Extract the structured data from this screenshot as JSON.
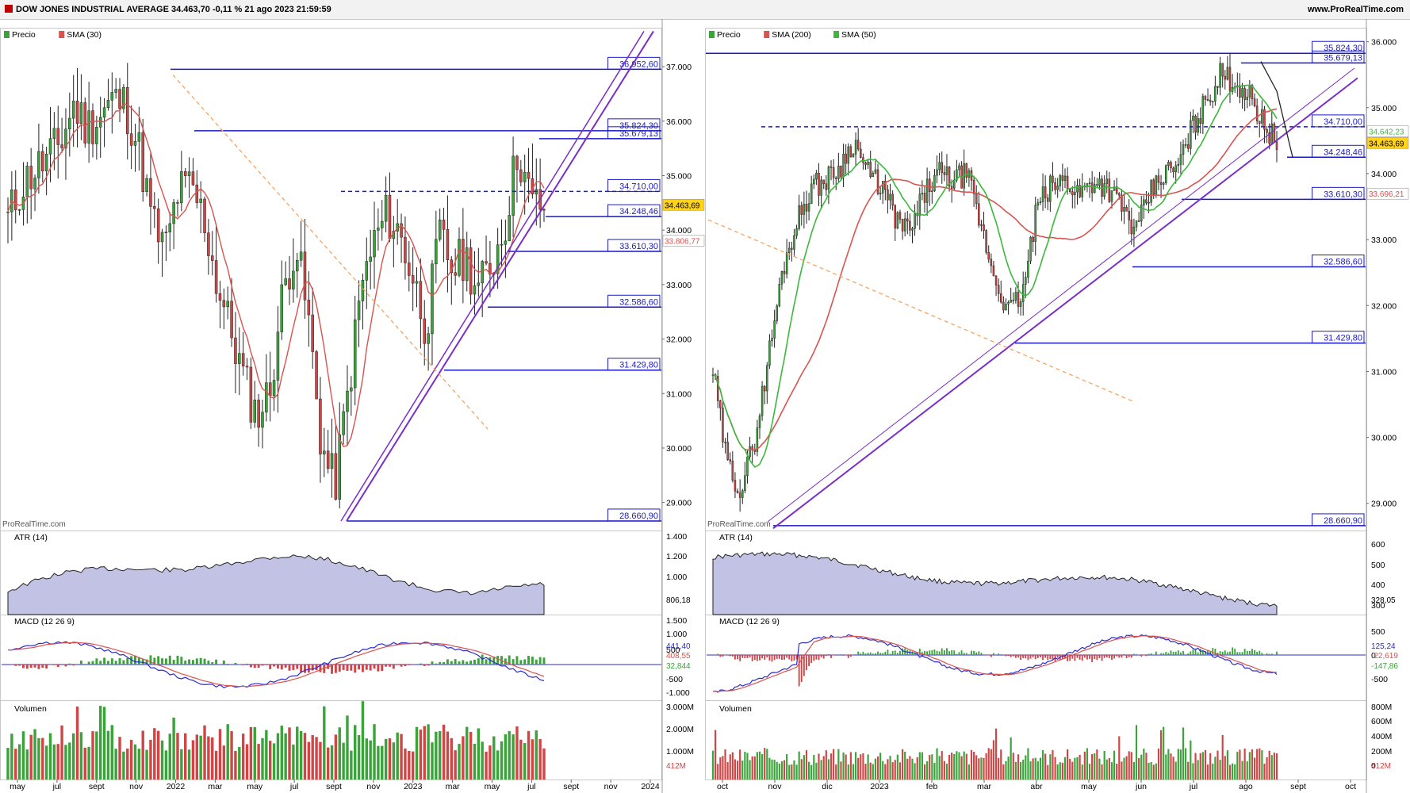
{
  "header": {
    "title": "DOW JONES INDUSTRIAL AVERAGE 34.463,70 -0,11 % 21 ago 2023 21:59:59",
    "site": "www.ProRealTime.com"
  },
  "colors": {
    "candle_up": "#3aa33a",
    "candle_down": "#d04545",
    "level_line": "#1a1ac8",
    "trendline": "#7a2ec8",
    "sma_red": "#d9534f",
    "sma_green": "#3cb83c",
    "fib_dash": "#f4a460",
    "atr_fill": "#9a9ad4"
  },
  "watermark": "ProRealTime.com",
  "left": {
    "price_panel": {
      "legend": [
        "Precio",
        "SMA (30)"
      ],
      "price_axis": [
        "37.000",
        "36.000",
        "35.000",
        "34.000",
        "33.000",
        "32.000",
        "31.000",
        "30.000",
        "29.000"
      ],
      "levels": [
        "36.952,60",
        "35.824,30",
        "35.679,13",
        "34.710,00",
        "34.248,46",
        "33.610,30",
        "32.586,60",
        "31.429,80",
        "28.660,90"
      ],
      "last_price": "34.463,69",
      "sma_value": "33.806,77"
    },
    "atr_panel": {
      "legend": "ATR (14)",
      "axis": [
        "1.400",
        "1.200",
        "1.000"
      ],
      "value": "806,18"
    },
    "macd_panel": {
      "legend": "MACD (12 26 9)",
      "axis": [
        "1.500",
        "1.000",
        "500",
        "-500",
        "-1.000"
      ],
      "values": [
        "441,40",
        "408,55",
        "32,844"
      ]
    },
    "volume_panel": {
      "legend": "Volumen",
      "axis": [
        "3.000M",
        "2.000M",
        "1.000M"
      ],
      "value": "412M"
    },
    "x_axis": [
      "may",
      "jul",
      "sept",
      "nov",
      "2022",
      "mar",
      "may",
      "jul",
      "sept",
      "nov",
      "2023",
      "mar",
      "may",
      "jul",
      "sept",
      "nov",
      "2024"
    ]
  },
  "right": {
    "price_panel": {
      "legend": [
        "Precio",
        "SMA (200)",
        "SMA (50)"
      ],
      "price_axis": [
        "36.000",
        "35.000",
        "34.000",
        "33.000",
        "32.000",
        "31.000",
        "30.000",
        "29.000"
      ],
      "levels": [
        "35.824,30",
        "35.679,13",
        "34.710,00",
        "34.248,46",
        "33.610,30",
        "32.586,60",
        "31.429,80",
        "28.660,90"
      ],
      "last_price": "34.463,69",
      "sma50_value": "34.642,23",
      "sma200_value": "33.696,21"
    },
    "atr_panel": {
      "legend": "ATR (14)",
      "axis": [
        "600",
        "500",
        "400",
        "300"
      ],
      "value": "328,05"
    },
    "macd_panel": {
      "legend": "MACD (12 26 9)",
      "axis": [
        "500",
        "0",
        "-500"
      ],
      "values": [
        "125,24",
        "-22,619",
        "-147,86"
      ]
    },
    "volume_panel": {
      "legend": "Volumen",
      "axis": [
        "800M",
        "600M",
        "400M",
        "200M",
        "0"
      ],
      "value": "412M"
    },
    "x_axis": [
      "oct",
      "nov",
      "dic",
      "2023",
      "feb",
      "mar",
      "abr",
      "may",
      "jun",
      "jul",
      "ago",
      "sept",
      "oct"
    ]
  },
  "chart_data": [
    {
      "type": "candlestick",
      "title": "DOW JONES INDUSTRIAL AVERAGE (weekly)",
      "x_range": [
        "may 2021",
        "ago 2023"
      ],
      "ylim": [
        28500,
        37700
      ],
      "approx_closes": [
        34200,
        34800,
        35100,
        35300,
        35600,
        36300,
        35900,
        36100,
        36400,
        36300,
        35500,
        34200,
        33600,
        34700,
        34800,
        34200,
        33000,
        32200,
        31300,
        30600,
        31000,
        32800,
        33800,
        32300,
        30000,
        29300,
        31000,
        32900,
        33800,
        34300,
        33900,
        33100,
        32200,
        33900,
        33300,
        33500,
        32900,
        33400,
        34100,
        35500,
        34500,
        34463
      ],
      "sma30_last": 33806.77,
      "levels": [
        36952.6,
        35824.3,
        35679.13,
        34710.0,
        34248.46,
        33610.3,
        32586.6,
        31429.8,
        28660.9
      ]
    },
    {
      "type": "candlestick",
      "title": "DOW JONES INDUSTRIAL AVERAGE (daily)",
      "x_range": [
        "sept 2022",
        "ago 2023"
      ],
      "ylim": [
        28600,
        36200
      ],
      "approx_closes": [
        31000,
        29600,
        29200,
        30000,
        31300,
        32600,
        33300,
        33800,
        33900,
        34100,
        34500,
        34000,
        33800,
        33300,
        33100,
        33700,
        34000,
        33900,
        34000,
        33200,
        32400,
        31900,
        32200,
        33500,
        33800,
        33900,
        33700,
        33900,
        33800,
        33500,
        33100,
        33700,
        34000,
        34100,
        34700,
        35100,
        35500,
        35400,
        35200,
        34800,
        34463
      ],
      "sma50_last": 34642.23,
      "sma200_last": 33696.21,
      "levels": [
        35824.3,
        35679.13,
        34710.0,
        34248.46,
        33610.3,
        32586.6,
        31429.8,
        28660.9
      ]
    }
  ]
}
